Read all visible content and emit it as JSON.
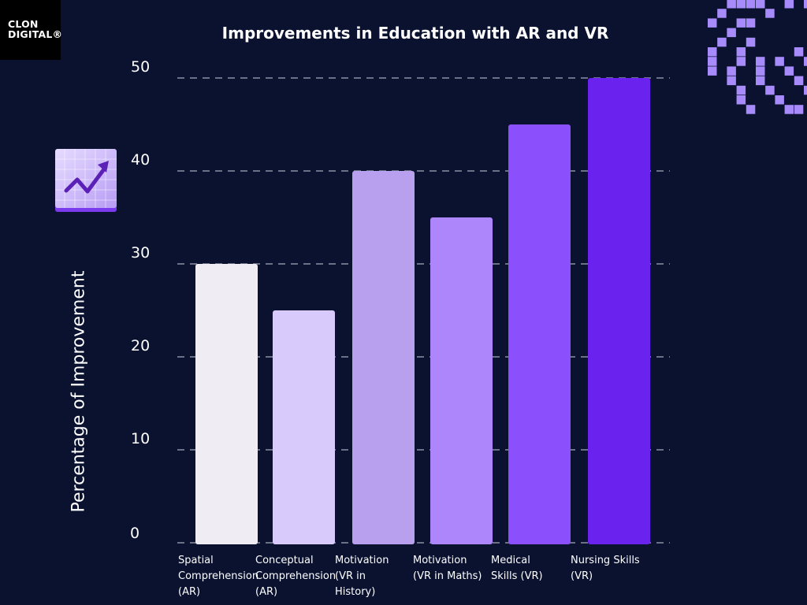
{
  "logo": {
    "line1": "CLON",
    "line2": "DIGITAL®"
  },
  "chart_data": {
    "type": "bar",
    "title": "Improvements in Education with AR and VR",
    "xlabel": "",
    "ylabel": "Percentage of Improvement",
    "ylim": [
      0,
      50
    ],
    "yticks": [
      0,
      10,
      20,
      30,
      40,
      50
    ],
    "grid": true,
    "categories": [
      "Spatial Comprehension (AR)",
      "Conceptual Comprehension (AR)",
      "Motivation (VR in History)",
      "Motivation (VR in Maths)",
      "Medical Skills (VR)",
      "Nursing Skills (VR)"
    ],
    "category_lines": [
      [
        "Spatial",
        "Comprehension",
        "(AR)"
      ],
      [
        "Conceptual",
        "Comprehension",
        "(AR)"
      ],
      [
        "Motivation",
        "(VR in",
        "History)"
      ],
      [
        "Motivation",
        "(VR in Maths)"
      ],
      [
        "Medical",
        "Skills (VR)"
      ],
      [
        "Nursing Skills",
        "(VR)"
      ]
    ],
    "values": [
      30,
      25,
      40,
      35,
      45,
      50
    ],
    "colors": [
      "#efedf3",
      "#d8cafb",
      "#b9a0ef",
      "#ad86fb",
      "#8b50fc",
      "#6a23ef"
    ]
  },
  "icons": {
    "chart_badge": "trending-up-chart-icon",
    "decoration": "pixel-pattern"
  },
  "colors": {
    "background": "#0a1230",
    "accent": "#a78bfa"
  }
}
